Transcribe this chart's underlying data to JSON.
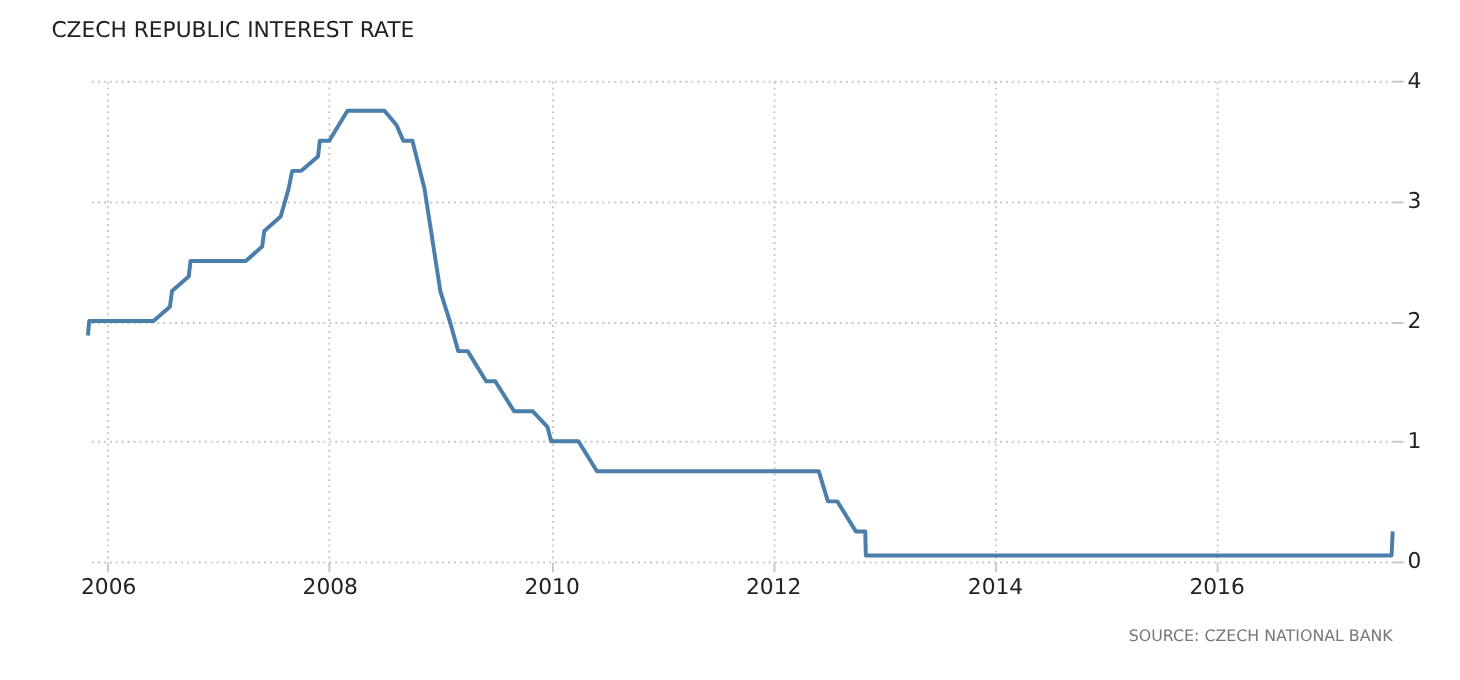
{
  "chart_data": {
    "type": "line",
    "title": "CZECH REPUBLIC INTEREST RATE",
    "annotations": [
      "SOURCE: CZECH NATIONAL BANK"
    ],
    "x": [
      "2005-10-28",
      "2005-11-01",
      "2006-06-01",
      "2006-07-25",
      "2006-08-01",
      "2006-09-25",
      "2006-10-01",
      "2007-04-01",
      "2007-05-25",
      "2007-06-01",
      "2007-07-25",
      "2007-08-20",
      "2007-09-01",
      "2007-10-01",
      "2007-11-25",
      "2007-12-01",
      "2008-01-01",
      "2008-03-01",
      "2008-07-01",
      "2008-08-10",
      "2008-09-01",
      "2008-10-01",
      "2008-11-10",
      "2009-01-01",
      "2009-02-01",
      "2009-03-01",
      "2009-04-01",
      "2009-06-01",
      "2009-07-01",
      "2009-09-01",
      "2009-11-01",
      "2009-12-20",
      "2010-01-01",
      "2010-04-01",
      "2010-06-01",
      "2012-06-01",
      "2012-07-01",
      "2012-08-01",
      "2012-10-01",
      "2012-11-01",
      "2012-11-03",
      "2017-08-01",
      "2017-08-05"
    ],
    "series": [
      {
        "color": "#4a7eab",
        "values": [
          1.88,
          2.0,
          2.0,
          2.12,
          2.25,
          2.37,
          2.5,
          2.5,
          2.62,
          2.75,
          2.87,
          3.1,
          3.25,
          3.25,
          3.37,
          3.5,
          3.5,
          3.75,
          3.75,
          3.63,
          3.5,
          3.5,
          3.1,
          2.25,
          2.0,
          1.75,
          1.75,
          1.5,
          1.5,
          1.25,
          1.25,
          1.12,
          1.0,
          1.0,
          0.75,
          0.75,
          0.5,
          0.5,
          0.25,
          0.25,
          0.05,
          0.05,
          0.25
        ]
      }
    ],
    "xlim": [
      "2005-10-25",
      "2017-08-05"
    ],
    "xticks": [
      "2006",
      "2008",
      "2010",
      "2012",
      "2014",
      "2016"
    ],
    "ylim": [
      0,
      4
    ],
    "yticks": [
      0,
      1,
      2,
      3,
      4
    ],
    "grid": true,
    "marker": "none",
    "line_style": "solid"
  }
}
